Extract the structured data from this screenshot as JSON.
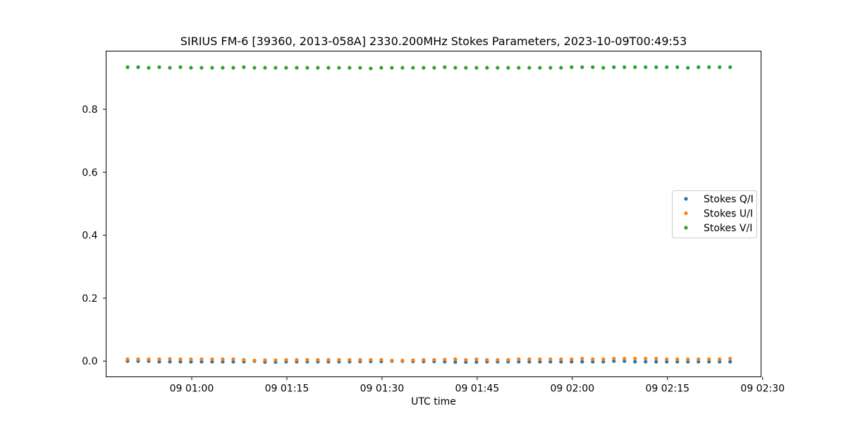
{
  "chart_data": {
    "type": "scatter",
    "title": "SIRIUS FM-6 [39360, 2013-058A] 2330.200MHz Stokes Parameters, 2023-10-09T00:49:53",
    "xlabel": "UTC time",
    "ylabel": "",
    "x_start": "2023-10-09T00:49:53",
    "x_step_seconds": 100,
    "xlim": [
      "2023-10-09T00:46:30",
      "2023-10-09T02:29:45"
    ],
    "ylim": [
      -0.05,
      0.985
    ],
    "xticks": [
      {
        "time": "2023-10-09T01:00:00",
        "label": "09 01:00"
      },
      {
        "time": "2023-10-09T01:15:00",
        "label": "09 01:15"
      },
      {
        "time": "2023-10-09T01:30:00",
        "label": "09 01:30"
      },
      {
        "time": "2023-10-09T01:45:00",
        "label": "09 01:45"
      },
      {
        "time": "2023-10-09T02:00:00",
        "label": "09 02:00"
      },
      {
        "time": "2023-10-09T02:15:00",
        "label": "09 02:15"
      },
      {
        "time": "2023-10-09T02:30:00",
        "label": "09 02:30"
      }
    ],
    "yticks": [
      {
        "value": 0.0,
        "label": "0.0"
      },
      {
        "value": 0.2,
        "label": "0.2"
      },
      {
        "value": 0.4,
        "label": "0.4"
      },
      {
        "value": 0.6,
        "label": "0.6"
      },
      {
        "value": 0.8,
        "label": "0.8"
      }
    ],
    "grid": false,
    "legend_position": "center-right",
    "series": [
      {
        "name": "Stokes Q/I",
        "color": "#1f77b4",
        "values": [
          0.0,
          0.0,
          0.0,
          -0.002,
          -0.002,
          -0.002,
          -0.002,
          -0.002,
          -0.002,
          -0.002,
          -0.002,
          -0.002,
          0.0,
          -0.003,
          -0.003,
          -0.002,
          -0.002,
          -0.002,
          -0.002,
          -0.002,
          -0.002,
          -0.002,
          -0.001,
          -0.001,
          -0.001,
          0.0,
          0.0,
          -0.001,
          -0.001,
          -0.001,
          -0.002,
          -0.003,
          -0.003,
          -0.003,
          -0.002,
          -0.002,
          -0.002,
          -0.002,
          -0.002,
          -0.002,
          -0.002,
          -0.002,
          -0.002,
          -0.002,
          -0.002,
          -0.002,
          0.0,
          0.0,
          -0.002,
          -0.002,
          -0.002,
          -0.002,
          -0.002,
          -0.002,
          -0.002,
          -0.002,
          -0.002,
          -0.002
        ]
      },
      {
        "name": "Stokes U/I",
        "color": "#ff7f0e",
        "values": [
          0.006,
          0.006,
          0.006,
          0.006,
          0.007,
          0.006,
          0.006,
          0.006,
          0.006,
          0.006,
          0.006,
          0.004,
          0.002,
          0.003,
          0.003,
          0.004,
          0.004,
          0.004,
          0.004,
          0.004,
          0.004,
          0.004,
          0.004,
          0.004,
          0.004,
          0.002,
          0.002,
          0.003,
          0.004,
          0.004,
          0.005,
          0.006,
          0.004,
          0.006,
          0.004,
          0.004,
          0.004,
          0.006,
          0.006,
          0.006,
          0.006,
          0.006,
          0.006,
          0.008,
          0.006,
          0.006,
          0.008,
          0.008,
          0.008,
          0.008,
          0.008,
          0.006,
          0.006,
          0.006,
          0.006,
          0.006,
          0.006,
          0.008
        ]
      },
      {
        "name": "Stokes V/I",
        "color": "#2ca02c",
        "values": [
          0.934,
          0.934,
          0.932,
          0.934,
          0.932,
          0.934,
          0.932,
          0.932,
          0.932,
          0.932,
          0.932,
          0.934,
          0.932,
          0.932,
          0.932,
          0.932,
          0.932,
          0.932,
          0.932,
          0.932,
          0.932,
          0.932,
          0.932,
          0.93,
          0.932,
          0.932,
          0.932,
          0.932,
          0.932,
          0.932,
          0.934,
          0.932,
          0.932,
          0.932,
          0.932,
          0.932,
          0.932,
          0.932,
          0.932,
          0.932,
          0.932,
          0.932,
          0.934,
          0.934,
          0.934,
          0.932,
          0.934,
          0.934,
          0.934,
          0.934,
          0.934,
          0.934,
          0.934,
          0.932,
          0.934,
          0.934,
          0.934,
          0.934
        ]
      }
    ]
  }
}
